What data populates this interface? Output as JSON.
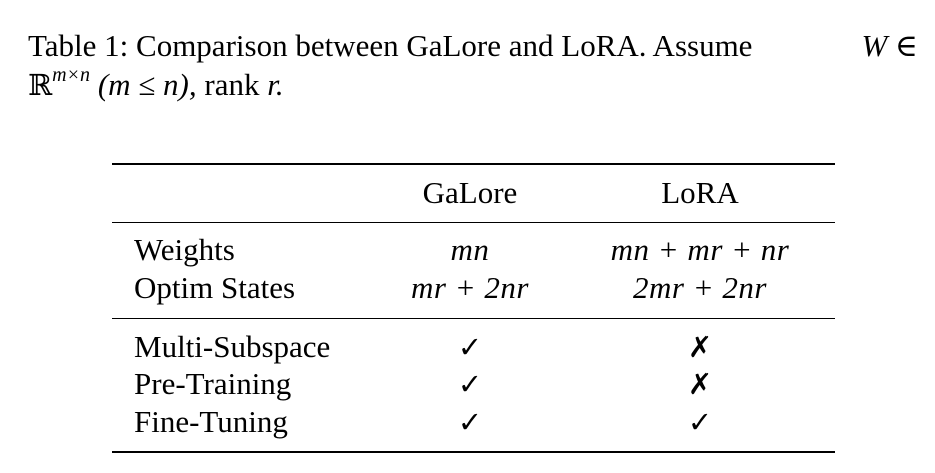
{
  "caption": {
    "label": "Table 1:",
    "text": "Comparison between GaLore and LoRA. Assume",
    "var_W": "W",
    "in_symbol": "∈",
    "reals": "ℝ",
    "exponent": "m×n",
    "condition": "(m ≤ n),",
    "rank_text": "rank",
    "rank_var": "r."
  },
  "table": {
    "columns": [
      "",
      "GaLore",
      "LoRA"
    ],
    "rows": [
      {
        "label": "Weights",
        "galore": "mn",
        "lora": "mn + mr + nr"
      },
      {
        "label": "Optim States",
        "galore": "mr + 2nr",
        "lora": "2mr + 2nr"
      },
      {
        "label": "Multi-Subspace",
        "galore": "✓",
        "lora": "✗"
      },
      {
        "label": "Pre-Training",
        "galore": "✓",
        "lora": "✗"
      },
      {
        "label": "Fine-Tuning",
        "galore": "✓",
        "lora": "✓"
      }
    ]
  }
}
